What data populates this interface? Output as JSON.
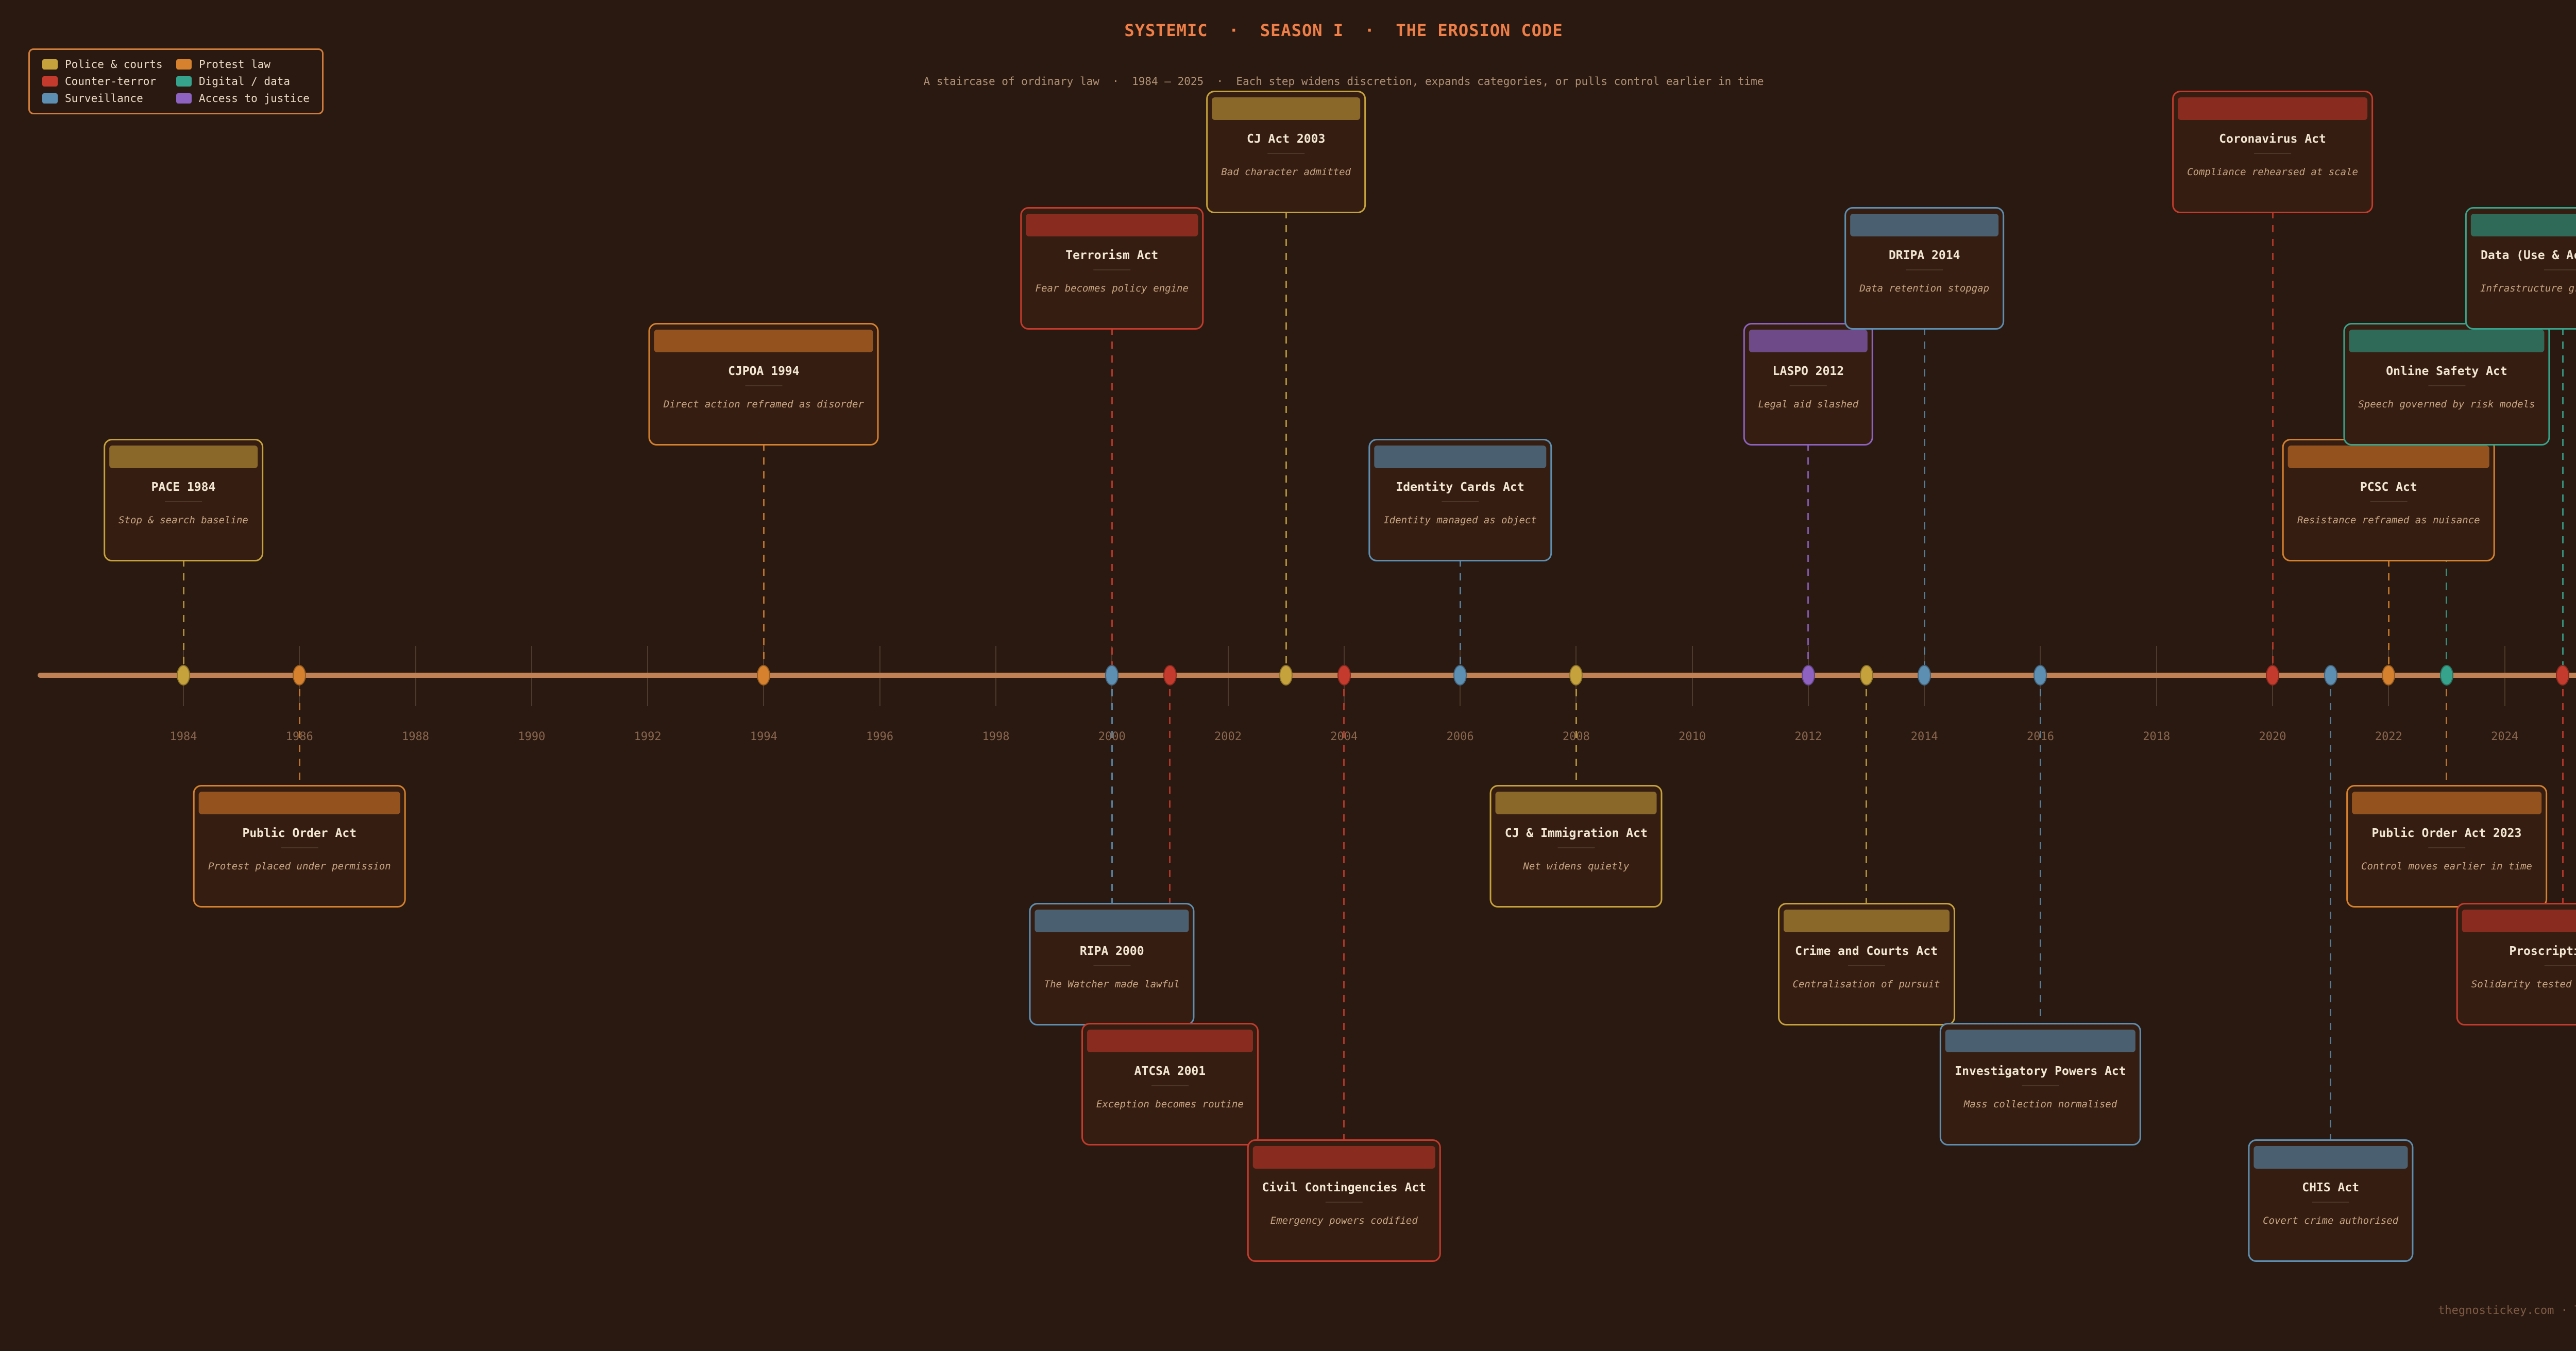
{
  "colors": {
    "bg": "#2a1910",
    "card_bg": "#351e11",
    "axis": "#c08254",
    "tick": "#4e3a2b",
    "year_label": "#8a6750",
    "title": "#ef7f48",
    "subtitle": "#b09176",
    "cream": "#f3e7d3",
    "tagline": "#c8a584",
    "legend_border": "#d07c3c",
    "legend_text": "#ead9c4",
    "watermark": "#7d5a45",
    "divider": "rgba(243,231,211,0.12)"
  },
  "chart_data": {
    "type": "timeline",
    "title": "SYSTEMIC  ·  SEASON I  ·  THE EROSION CODE",
    "subtitle": "A staircase of ordinary law  ·  1984 – 2025  ·  Each step widens discretion, expands categories, or pulls control earlier in time",
    "watermark": "thegnostickey.com · The Keymaker",
    "x_axis": {
      "start": 1984,
      "end": 2026,
      "tick_step": 2,
      "grid": "vertical ticks at even years"
    },
    "legend_position": "top-left",
    "categories": {
      "police": {
        "label": "Police & courts",
        "color": "#c6a23c",
        "bar": "#8a682a"
      },
      "terror": {
        "label": "Counter-terror",
        "color": "#c43b2d",
        "bar": "#8a2b20"
      },
      "surveillance": {
        "label": "Surveillance",
        "color": "#5d8fb3",
        "bar": "#4a6070"
      },
      "protest": {
        "label": "Protest law",
        "color": "#d5812e",
        "bar": "#94531e"
      },
      "digital": {
        "label": "Digital / data",
        "color": "#36a38c",
        "bar": "#2f6a58"
      },
      "justice": {
        "label": "Access to justice",
        "color": "#8d62c0",
        "bar": "#6f4a88"
      }
    },
    "legend_order": [
      "police",
      "terror",
      "surveillance",
      "protest",
      "digital",
      "justice"
    ],
    "events": [
      {
        "title": "PACE 1984",
        "tagline": "Stop & search baseline",
        "year": 1984,
        "category": "police",
        "side": "above",
        "level": 1
      },
      {
        "title": "Public Order Act",
        "tagline": "Protest placed under permission",
        "year": 1986,
        "category": "protest",
        "side": "below",
        "level": 1
      },
      {
        "title": "CJPOA 1994",
        "tagline": "Direct action reframed as disorder",
        "year": 1994,
        "category": "protest",
        "side": "above",
        "level": 2
      },
      {
        "title": "Terrorism Act",
        "tagline": "Fear becomes policy engine",
        "year": 2000,
        "category": "terror",
        "side": "above",
        "level": 3
      },
      {
        "title": "RIPA 2000",
        "tagline": "The Watcher made lawful",
        "year": 2000,
        "category": "surveillance",
        "side": "below",
        "level": 2
      },
      {
        "title": "ATCSA 2001",
        "tagline": "Exception becomes routine",
        "year": 2001,
        "category": "terror",
        "side": "below",
        "level": 3
      },
      {
        "title": "CJ Act 2003",
        "tagline": "Bad character admitted",
        "year": 2003,
        "category": "police",
        "side": "above",
        "level": 4
      },
      {
        "title": "Civil Contingencies Act",
        "tagline": "Emergency powers codified",
        "year": 2004,
        "category": "terror",
        "side": "below",
        "level": 4
      },
      {
        "title": "Identity Cards Act",
        "tagline": "Identity managed as object",
        "year": 2006,
        "category": "surveillance",
        "side": "above",
        "level": 1
      },
      {
        "title": "CJ & Immigration Act",
        "tagline": "Net widens quietly",
        "year": 2008,
        "category": "police",
        "side": "below",
        "level": 1
      },
      {
        "title": "LASPO 2012",
        "tagline": "Legal aid slashed",
        "year": 2012,
        "category": "justice",
        "side": "above",
        "level": 2
      },
      {
        "title": "Crime and Courts Act",
        "tagline": "Centralisation of pursuit",
        "year": 2013,
        "category": "police",
        "side": "below",
        "level": 2
      },
      {
        "title": "DRIPA 2014",
        "tagline": "Data retention stopgap",
        "year": 2014,
        "category": "surveillance",
        "side": "above",
        "level": 3
      },
      {
        "title": "Investigatory Powers Act",
        "tagline": "Mass collection normalised",
        "year": 2016,
        "category": "surveillance",
        "side": "below",
        "level": 3
      },
      {
        "title": "Coronavirus Act",
        "tagline": "Compliance rehearsed at scale",
        "year": 2020,
        "category": "terror",
        "side": "above",
        "level": 4
      },
      {
        "title": "CHIS Act",
        "tagline": "Covert crime authorised",
        "year": 2021,
        "category": "surveillance",
        "side": "below",
        "level": 4
      },
      {
        "title": "PCSC Act",
        "tagline": "Resistance reframed as nuisance",
        "year": 2022,
        "category": "protest",
        "side": "above",
        "level": 1
      },
      {
        "title": "Public Order Act 2023",
        "tagline": "Control moves earlier in time",
        "year": 2023,
        "category": "protest",
        "side": "below",
        "level": 1
      },
      {
        "title": "Online Safety Act",
        "tagline": "Speech governed by risk models",
        "year": 2023,
        "category": "digital",
        "side": "above",
        "level": 2
      },
      {
        "title": "Data (Use & Access) Act",
        "tagline": "Infrastructure grows quietly",
        "year": 2025,
        "category": "digital",
        "side": "above",
        "level": 3
      },
      {
        "title": "Proscription SI",
        "tagline": "Solidarity tested at terror law",
        "year": 2025,
        "category": "terror",
        "side": "below",
        "level": 2
      }
    ]
  }
}
